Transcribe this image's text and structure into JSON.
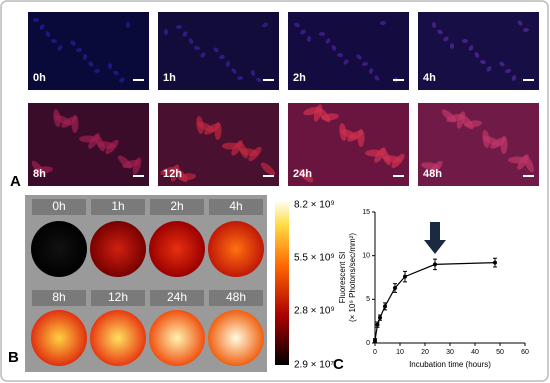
{
  "panel_a": {
    "label": "A",
    "tiles": [
      "0h",
      "1h",
      "2h",
      "4h",
      "8h",
      "12h",
      "24h",
      "48h"
    ]
  },
  "panel_b": {
    "label": "B",
    "wells": [
      "0h",
      "1h",
      "2h",
      "4h",
      "8h",
      "12h",
      "24h",
      "48h"
    ],
    "colorbar": {
      "lim": [
        29000000,
        8200000000
      ],
      "ticks": [
        {
          "value": 8200000000,
          "label": "8.2 × 10⁹"
        },
        {
          "value": 5500000000,
          "label": "5.5 × 10⁹"
        },
        {
          "value": 2800000000,
          "label": "2.8 × 10⁹"
        },
        {
          "value": 29000000,
          "label": "2.9 × 10⁷"
        }
      ]
    }
  },
  "chart_data": {
    "type": "line",
    "label": "C",
    "x": [
      0,
      1,
      2,
      4,
      8,
      12,
      24,
      48
    ],
    "values": [
      0.3,
      2.1,
      2.9,
      4.2,
      6.3,
      7.6,
      9.0,
      9.2
    ],
    "errors": [
      0.2,
      0.3,
      0.3,
      0.4,
      0.5,
      0.6,
      0.6,
      0.5
    ],
    "color": "#000000",
    "xlabel": "Incubation time (hours)",
    "ylabel": [
      "Fluorescent SI",
      "(× 10⁹ Photons/sec/mm²)"
    ],
    "xlim": [
      0,
      60
    ],
    "xticks": [
      0,
      10,
      20,
      30,
      40,
      50,
      60
    ],
    "ylim": [
      0,
      15
    ],
    "yticks": [
      0,
      5,
      10,
      15
    ]
  }
}
